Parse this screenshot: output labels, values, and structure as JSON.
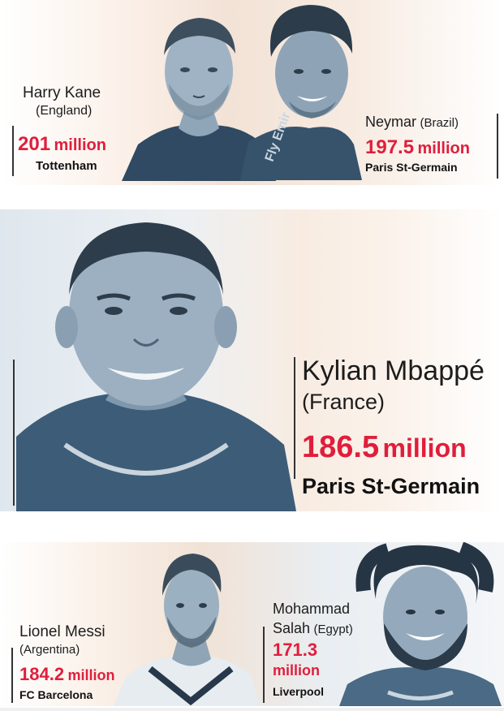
{
  "players": [
    {
      "name": "Harry Kane",
      "country": "(England)",
      "value_number": "201",
      "value_unit": "million",
      "club": "Tottenham"
    },
    {
      "name": "Neymar",
      "country": "(Brazil)",
      "value_number": "197.5",
      "value_unit": "million",
      "club": "Paris St-Germain",
      "shirt_text": "Fly Emir"
    },
    {
      "name": "Kylian Mbappé",
      "country": "(France)",
      "value_number": "186.5",
      "value_unit": "million",
      "club": "Paris St-Germain"
    },
    {
      "name": "Lionel Messi",
      "country": "(Argentina)",
      "value_number": "184.2",
      "value_unit": "million",
      "club": "FC Barcelona"
    },
    {
      "name_line1": "Mohammad",
      "name_line2": "Salah",
      "country": "(Egypt)",
      "value_number": "171.3",
      "value_unit": "million",
      "club": "Liverpool"
    }
  ],
  "colors": {
    "accent_red": "#e01e3c",
    "text_dark": "#1c1c1c",
    "photo_tint": "#4a6a85",
    "bg_warm": "#f6e3d3",
    "bg_cool": "#dde6ee"
  }
}
